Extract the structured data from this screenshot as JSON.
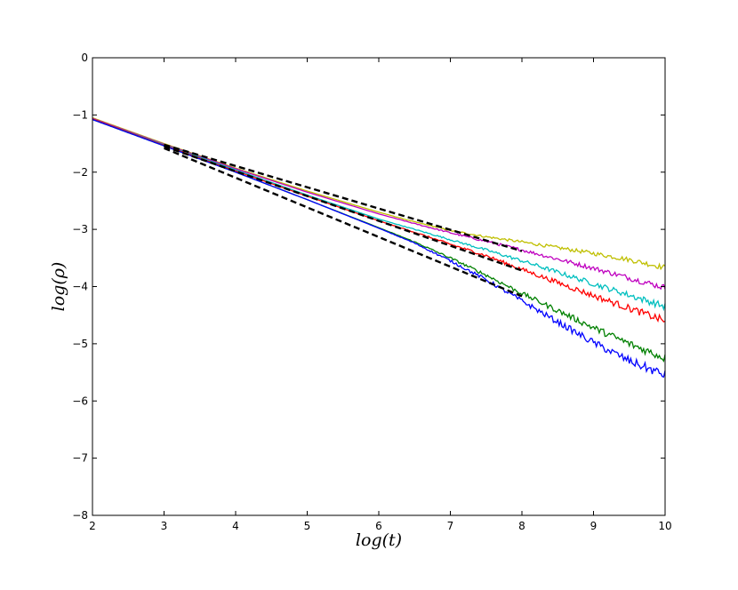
{
  "chart_data": {
    "type": "line",
    "title": "",
    "xlabel": "log(t)",
    "ylabel": "log(ρ)",
    "xlim": [
      2,
      10
    ],
    "ylim": [
      -8,
      0
    ],
    "xticks": [
      2,
      3,
      4,
      5,
      6,
      7,
      8,
      9,
      10
    ],
    "yticks": [
      0,
      -1,
      -2,
      -3,
      -4,
      -5,
      -6,
      -7,
      -8
    ],
    "xtick_labels": [
      "2",
      "3",
      "4",
      "5",
      "6",
      "7",
      "8",
      "9",
      "10"
    ],
    "ytick_labels": [
      "0",
      "−1",
      "−2",
      "−3",
      "−4",
      "−5",
      "−6",
      "−7",
      "−8"
    ],
    "grid": false,
    "legend": "none",
    "series": [
      {
        "color": "#bfbf00",
        "x": [
          2.0,
          3.0,
          4.0,
          5.0,
          6.0,
          6.5,
          7.0,
          7.5,
          8.0,
          8.5,
          9.0,
          9.5,
          10.0
        ],
        "y": [
          -1.05,
          -1.5,
          -1.93,
          -2.33,
          -2.7,
          -2.87,
          -3.02,
          -3.13,
          -3.22,
          -3.32,
          -3.42,
          -3.53,
          -3.67
        ]
      },
      {
        "color": "#bf00bf",
        "x": [
          2.0,
          3.0,
          4.0,
          5.0,
          6.0,
          6.5,
          7.0,
          7.5,
          8.0,
          8.5,
          9.0,
          9.5,
          10.0
        ],
        "y": [
          -1.06,
          -1.51,
          -1.94,
          -2.35,
          -2.73,
          -2.9,
          -3.06,
          -3.21,
          -3.36,
          -3.52,
          -3.68,
          -3.85,
          -4.02
        ]
      },
      {
        "color": "#00bfbf",
        "x": [
          2.0,
          3.0,
          4.0,
          5.0,
          6.0,
          6.5,
          7.0,
          7.5,
          8.0,
          8.5,
          9.0,
          9.5,
          10.0
        ],
        "y": [
          -1.07,
          -1.52,
          -1.96,
          -2.4,
          -2.82,
          -3.0,
          -3.18,
          -3.36,
          -3.55,
          -3.75,
          -3.95,
          -4.15,
          -4.35
        ]
      },
      {
        "color": "#ff0000",
        "x": [
          2.0,
          3.0,
          4.0,
          5.0,
          6.0,
          6.5,
          7.0,
          7.5,
          8.0,
          8.5,
          9.0,
          9.5,
          10.0
        ],
        "y": [
          -1.07,
          -1.53,
          -1.98,
          -2.42,
          -2.85,
          -3.05,
          -3.26,
          -3.46,
          -3.7,
          -3.93,
          -4.16,
          -4.38,
          -4.6
        ]
      },
      {
        "color": "#008000",
        "x": [
          2.0,
          3.0,
          4.0,
          5.0,
          6.0,
          6.5,
          7.0,
          7.5,
          8.0,
          8.5,
          9.0,
          9.5,
          10.0
        ],
        "y": [
          -1.08,
          -1.54,
          -2.0,
          -2.48,
          -2.97,
          -3.22,
          -3.5,
          -3.8,
          -4.12,
          -4.42,
          -4.72,
          -5.0,
          -5.25
        ]
      },
      {
        "color": "#0000ff",
        "x": [
          2.0,
          3.0,
          4.0,
          5.0,
          6.0,
          6.5,
          7.0,
          7.5,
          8.0,
          8.5,
          9.0,
          9.5,
          10.0
        ],
        "y": [
          -1.08,
          -1.54,
          -2.0,
          -2.48,
          -2.98,
          -3.24,
          -3.55,
          -3.88,
          -4.25,
          -4.62,
          -4.98,
          -5.3,
          -5.55
        ]
      }
    ],
    "fit_lines": [
      {
        "style": "dashed",
        "color": "#000000",
        "x": [
          3.0,
          8.0
        ],
        "y": [
          -1.52,
          -3.38
        ]
      },
      {
        "style": "dashed",
        "color": "#000000",
        "x": [
          3.0,
          8.0
        ],
        "y": [
          -1.55,
          -3.72
        ]
      },
      {
        "style": "dashed",
        "color": "#000000",
        "x": [
          3.0,
          8.0
        ],
        "y": [
          -1.58,
          -4.17
        ]
      }
    ]
  }
}
